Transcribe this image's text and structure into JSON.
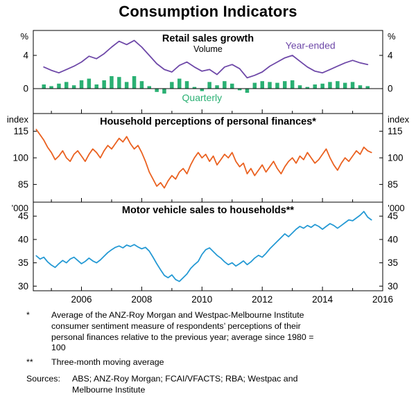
{
  "title": "Consumption Indicators",
  "xaxis": {
    "min": 2004.4,
    "max": 2016,
    "ticks": [
      2006,
      2008,
      2010,
      2012,
      2014,
      2016
    ]
  },
  "chart_data": [
    {
      "type": "bar+line",
      "title": "Retail sales growth",
      "subtitle": "Volume",
      "unit": "%",
      "ylim": [
        -3,
        7
      ],
      "yticks": [
        0,
        4
      ],
      "zero_line": true,
      "series": [
        {
          "name": "Quarterly",
          "type": "bar",
          "color": "#2ab073",
          "x_start": 2004.75,
          "x_step": 0.25,
          "values": [
            0.5,
            0.3,
            0.6,
            0.8,
            0.4,
            1.0,
            1.2,
            0.5,
            1.0,
            1.5,
            1.4,
            0.8,
            1.5,
            0.9,
            0.3,
            -0.4,
            -0.6,
            0.8,
            1.2,
            0.9,
            0.2,
            -0.3,
            0.8,
            0.4,
            0.9,
            0.6,
            -0.2,
            -0.5,
            0.7,
            0.9,
            0.8,
            0.7,
            0.9,
            1.0,
            0.4,
            0.2,
            0.5,
            0.6,
            0.8,
            0.9,
            0.7,
            0.8,
            0.4,
            0.3
          ],
          "label": {
            "text": "Quarterly",
            "x": 2010.0,
            "y": -1.5
          }
        },
        {
          "name": "Year-ended",
          "type": "line",
          "color": "#6e48a8",
          "x_start": 2004.75,
          "x_step": 0.25,
          "values": [
            2.6,
            2.2,
            1.9,
            2.3,
            2.7,
            3.2,
            3.9,
            3.6,
            4.2,
            5.0,
            5.7,
            5.3,
            5.8,
            5.0,
            4.0,
            3.0,
            2.3,
            2.0,
            2.8,
            3.2,
            2.6,
            2.1,
            2.3,
            1.7,
            2.6,
            2.9,
            2.4,
            1.3,
            1.6,
            2.0,
            2.7,
            3.2,
            3.7,
            4.0,
            3.3,
            2.6,
            2.1,
            1.9,
            2.3,
            2.7,
            3.1,
            3.4,
            3.1,
            2.9
          ],
          "label": {
            "text": "Year-ended",
            "x": 2013.6,
            "y": 4.8
          }
        }
      ]
    },
    {
      "type": "line",
      "title": "Household perceptions of personal finances*",
      "unit": "index",
      "ylim": [
        75,
        125
      ],
      "yticks": [
        85,
        100,
        115
      ],
      "zero_line": false,
      "series": [
        {
          "name": "Household perceptions of personal finances",
          "type": "line",
          "color": "#ea6120",
          "x_start": 2004.5,
          "x_step": 0.125,
          "values": [
            116,
            113,
            110,
            106,
            103,
            99,
            101,
            104,
            100,
            98,
            102,
            104,
            101,
            98,
            102,
            105,
            103,
            100,
            104,
            107,
            105,
            108,
            111,
            109,
            112,
            108,
            105,
            107,
            103,
            98,
            92,
            88,
            84,
            86,
            83,
            87,
            90,
            88,
            92,
            94,
            91,
            96,
            100,
            103,
            100,
            102,
            98,
            101,
            96,
            99,
            102,
            100,
            103,
            98,
            95,
            97,
            91,
            94,
            90,
            93,
            96,
            92,
            95,
            98,
            94,
            91,
            95,
            98,
            100,
            97,
            101,
            99,
            103,
            100,
            97,
            99,
            102,
            105,
            100,
            96,
            93,
            97,
            100,
            98,
            101,
            104,
            102,
            106,
            104,
            103
          ]
        }
      ]
    },
    {
      "type": "line",
      "title": "Motor vehicle sales to households**",
      "unit": "’000",
      "ylim": [
        29,
        48
      ],
      "yticks": [
        30,
        35,
        40,
        45
      ],
      "zero_line": false,
      "series": [
        {
          "name": "Motor vehicle sales to households",
          "type": "line",
          "color": "#2499d4",
          "x_start": 2004.5,
          "x_step": 0.125,
          "values": [
            36.5,
            35.8,
            36.2,
            35.2,
            34.5,
            34.0,
            34.8,
            35.5,
            35.0,
            35.8,
            36.2,
            35.5,
            34.8,
            35.3,
            36.0,
            35.4,
            35.0,
            35.6,
            36.4,
            37.2,
            37.8,
            38.3,
            38.6,
            38.2,
            38.8,
            38.5,
            38.9,
            38.4,
            38.0,
            38.3,
            37.5,
            36.2,
            34.8,
            33.5,
            32.3,
            31.8,
            32.4,
            31.4,
            31.0,
            31.8,
            32.6,
            33.8,
            34.6,
            35.3,
            36.8,
            37.8,
            38.2,
            37.4,
            36.6,
            36.0,
            35.2,
            34.6,
            35.0,
            34.3,
            34.8,
            35.4,
            34.6,
            35.2,
            36.0,
            36.6,
            36.2,
            37.0,
            38.0,
            38.8,
            39.6,
            40.4,
            41.2,
            40.6,
            41.4,
            42.2,
            42.8,
            42.4,
            43.0,
            42.6,
            43.2,
            42.8,
            42.2,
            42.8,
            43.4,
            43.0,
            42.4,
            43.0,
            43.6,
            44.2,
            44.0,
            44.6,
            45.2,
            46.0,
            44.8,
            44.2
          ]
        }
      ]
    }
  ],
  "footnotes": [
    {
      "marker": "*",
      "text": "Average of the ANZ-Roy Morgan and Westpac-Melbourne Institute consumer sentiment measure of respondents’ perceptions of their personal finances relative to the previous year; average since 1980 = 100"
    },
    {
      "marker": "**",
      "text": "Three-month moving average"
    }
  ],
  "sources": {
    "label": "Sources:",
    "text": "ABS; ANZ-Roy Morgan; FCAI/VFACTS; RBA; Westpac and Melbourne Institute"
  }
}
